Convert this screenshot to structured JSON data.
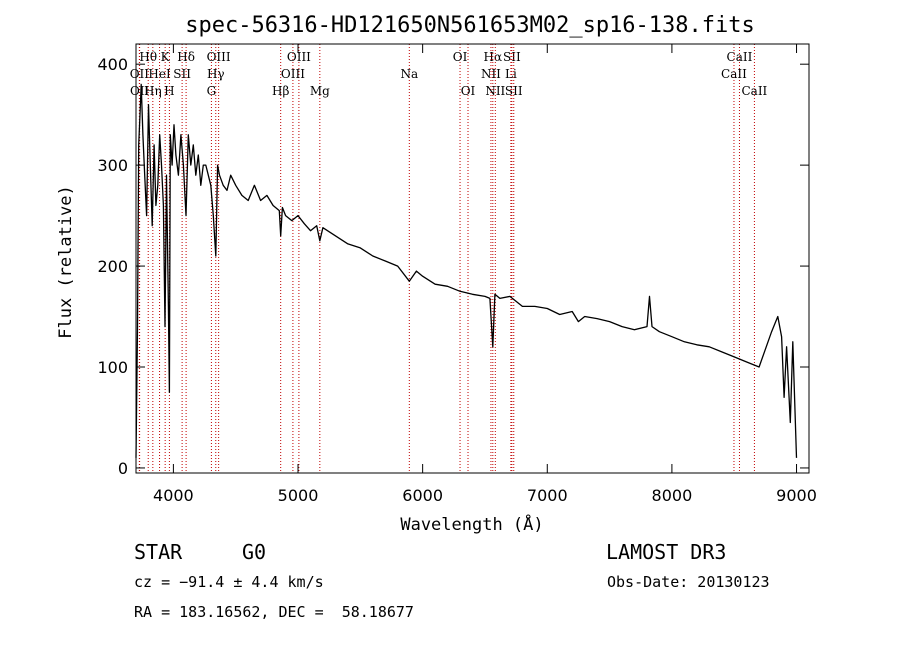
{
  "chart_data": {
    "type": "line",
    "title": "spec-56316-HD121650N561653M02_sp16-138.fits",
    "xlabel": "Wavelength (Å)",
    "ylabel": "Flux (relative)",
    "xlim": [
      3700,
      9100
    ],
    "ylim": [
      -5,
      420
    ],
    "x_ticks": [
      4000,
      5000,
      6000,
      7000,
      8000,
      9000
    ],
    "y_ticks": [
      0,
      100,
      200,
      300,
      400
    ],
    "series": [
      {
        "name": "spectrum",
        "x": [
          3700,
          3712,
          3722,
          3732,
          3742,
          3755,
          3770,
          3785,
          3800,
          3815,
          3830,
          3845,
          3860,
          3875,
          3890,
          3905,
          3920,
          3933,
          3945,
          3960,
          3968,
          3975,
          3990,
          4005,
          4020,
          4040,
          4060,
          4080,
          4101,
          4120,
          4140,
          4160,
          4180,
          4200,
          4220,
          4240,
          4260,
          4280,
          4300,
          4320,
          4340,
          4355,
          4370,
          4400,
          4430,
          4460,
          4500,
          4550,
          4600,
          4650,
          4700,
          4750,
          4800,
          4850,
          4861,
          4875,
          4900,
          4950,
          5000,
          5050,
          5100,
          5150,
          5175,
          5200,
          5300,
          5400,
          5500,
          5600,
          5700,
          5800,
          5893,
          5950,
          6000,
          6100,
          6200,
          6300,
          6400,
          6500,
          6540,
          6563,
          6580,
          6620,
          6700,
          6800,
          6900,
          7000,
          7100,
          7200,
          7250,
          7300,
          7400,
          7500,
          7600,
          7700,
          7800,
          7820,
          7840,
          7900,
          8000,
          8100,
          8200,
          8300,
          8400,
          8500,
          8600,
          8700,
          8800,
          8850,
          8880,
          8900,
          8920,
          8950,
          8970,
          9000
        ],
        "y": [
          10,
          140,
          320,
          350,
          380,
          330,
          290,
          250,
          360,
          300,
          240,
          320,
          260,
          280,
          330,
          300,
          260,
          140,
          290,
          160,
          75,
          330,
          300,
          340,
          310,
          290,
          330,
          300,
          250,
          330,
          300,
          320,
          290,
          310,
          280,
          300,
          300,
          290,
          280,
          250,
          210,
          300,
          290,
          280,
          275,
          290,
          280,
          270,
          265,
          280,
          265,
          270,
          260,
          255,
          230,
          258,
          250,
          245,
          250,
          242,
          235,
          240,
          225,
          238,
          230,
          222,
          218,
          210,
          205,
          200,
          185,
          195,
          190,
          182,
          180,
          175,
          172,
          170,
          168,
          120,
          172,
          168,
          170,
          160,
          160,
          158,
          152,
          155,
          145,
          150,
          148,
          145,
          140,
          137,
          140,
          170,
          140,
          135,
          130,
          125,
          122,
          120,
          115,
          110,
          105,
          100,
          135,
          150,
          130,
          70,
          120,
          45,
          125,
          10
        ]
      }
    ],
    "lines": [
      {
        "name": "OII",
        "x": 3727,
        "row": 1
      },
      {
        "name": "OII",
        "x": 3729,
        "row": 2
      },
      {
        "name": "Hθ",
        "x": 3798,
        "row": 0
      },
      {
        "name": "HeI",
        "x": 3889,
        "row": 1
      },
      {
        "name": "Hη",
        "x": 3835,
        "row": 2
      },
      {
        "name": "K",
        "x": 3934,
        "row": 0
      },
      {
        "name": "H",
        "x": 3968,
        "row": 2
      },
      {
        "name": "SII",
        "x": 4070,
        "row": 1
      },
      {
        "name": "Hδ",
        "x": 4102,
        "row": 0
      },
      {
        "name": "OIII",
        "x": 4363,
        "row": 0
      },
      {
        "name": "Hγ",
        "x": 4340,
        "row": 1
      },
      {
        "name": "G",
        "x": 4305,
        "row": 2
      },
      {
        "name": "Hβ",
        "x": 4861,
        "row": 2
      },
      {
        "name": "OIII",
        "x": 5007,
        "row": 0
      },
      {
        "name": "OIII",
        "x": 4959,
        "row": 1
      },
      {
        "name": "Mg",
        "x": 5175,
        "row": 2
      },
      {
        "name": "Na",
        "x": 5893,
        "row": 1
      },
      {
        "name": "OI",
        "x": 6300,
        "row": 0
      },
      {
        "name": "OI",
        "x": 6364,
        "row": 2
      },
      {
        "name": "Hα",
        "x": 6563,
        "row": 0
      },
      {
        "name": "NII",
        "x": 6548,
        "row": 1
      },
      {
        "name": "NII",
        "x": 6583,
        "row": 2
      },
      {
        "name": "SII",
        "x": 6716,
        "row": 0
      },
      {
        "name": "Li",
        "x": 6708,
        "row": 1
      },
      {
        "name": "SII",
        "x": 6731,
        "row": 2
      },
      {
        "name": "CaII",
        "x": 8542,
        "row": 0
      },
      {
        "name": "CaII",
        "x": 8498,
        "row": 1
      },
      {
        "name": "CaII",
        "x": 8662,
        "row": 2
      }
    ],
    "line_color": "#c00000"
  },
  "info": {
    "object_class": "STAR",
    "subclass": "G0",
    "survey": "LAMOST DR3",
    "velocity": "cz = −91.4 ± 4.4 km/s",
    "obs_date": "Obs-Date: 20130123",
    "coords": "RA = 183.16562, DEC =  58.18677"
  }
}
